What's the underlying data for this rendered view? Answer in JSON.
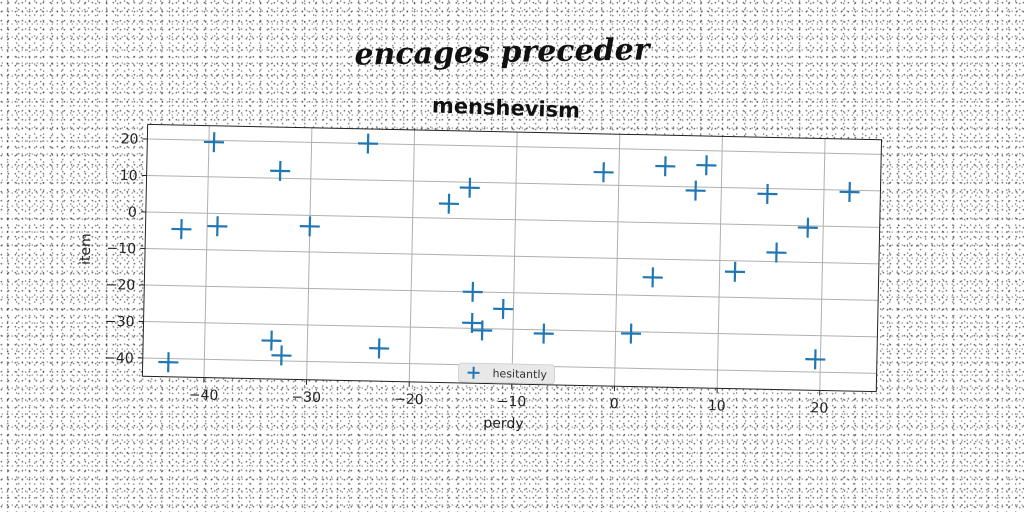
{
  "chart_data": {
    "type": "scatter",
    "suptitle": "encages preceder",
    "title": "menshevism",
    "xlabel": "perdy",
    "ylabel": "item",
    "xlim": [
      -46,
      25.5
    ],
    "ylim": [
      -45,
      24
    ],
    "xticks": [
      -40,
      -30,
      -20,
      -10,
      0,
      10,
      20
    ],
    "xtick_labels": [
      "−40",
      "−30",
      "−20",
      "−10",
      "0",
      "10",
      "20"
    ],
    "yticks": [
      -40,
      -30,
      -20,
      -10,
      0,
      10,
      20
    ],
    "ytick_labels": [
      "−40",
      "−30",
      "−20",
      "−10",
      "0",
      "10",
      "20"
    ],
    "grid": true,
    "legend_position": "bottom-center",
    "marker": "plus",
    "color": "#1f77b4",
    "series": [
      {
        "name": "hesitantly",
        "points": [
          [
            -39.5,
            19.5
          ],
          [
            -24.5,
            20.0
          ],
          [
            -33.0,
            12.0
          ],
          [
            -14.5,
            8.5
          ],
          [
            -16.5,
            4.0
          ],
          [
            -42.5,
            -4.5
          ],
          [
            -39.0,
            -3.5
          ],
          [
            -30.0,
            -3.0
          ],
          [
            -14.0,
            -20.0
          ],
          [
            -14.0,
            -28.5
          ],
          [
            -13.0,
            -30.5
          ],
          [
            -11.0,
            -24.5
          ],
          [
            -7.0,
            -31.0
          ],
          [
            -43.5,
            -41.0
          ],
          [
            -33.5,
            -34.5
          ],
          [
            -32.5,
            -38.5
          ],
          [
            -23.0,
            -36.0
          ],
          [
            -1.5,
            13.5
          ],
          [
            4.5,
            15.5
          ],
          [
            8.5,
            16.0
          ],
          [
            7.5,
            9.0
          ],
          [
            14.5,
            8.5
          ],
          [
            22.5,
            9.5
          ],
          [
            18.5,
            -0.5
          ],
          [
            15.5,
            -7.5
          ],
          [
            11.5,
            -13.0
          ],
          [
            3.5,
            -15.0
          ],
          [
            1.5,
            -30.5
          ],
          [
            19.5,
            -36.5
          ]
        ]
      }
    ]
  }
}
